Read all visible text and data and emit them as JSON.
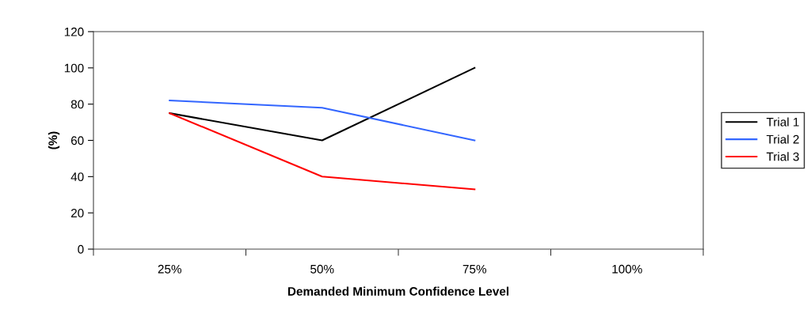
{
  "chart_data": {
    "type": "line",
    "xlabel": "Demanded Minimum Confidence Level",
    "ylabel": "(%)",
    "categories": [
      "25%",
      "50%",
      "75%",
      "100%"
    ],
    "series": [
      {
        "name": "Trial 1",
        "color": "#000000",
        "values": [
          75,
          60,
          100,
          null
        ]
      },
      {
        "name": "Trial 2",
        "color": "#3366ff",
        "values": [
          82,
          78,
          60,
          null
        ]
      },
      {
        "name": "Trial 3",
        "color": "#ff0000",
        "values": [
          75,
          40,
          33,
          null
        ]
      }
    ],
    "ylim": [
      0,
      120
    ],
    "yticks": [
      0,
      20,
      40,
      60,
      80,
      100,
      120
    ],
    "grid": false,
    "legend": "right",
    "marker": "none",
    "line_style": "solid"
  }
}
